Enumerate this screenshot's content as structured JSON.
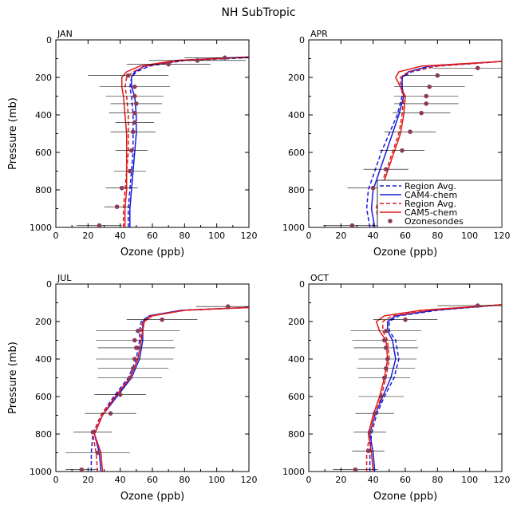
{
  "figure_title": "NH SubTropic",
  "colors": {
    "cam4": "#1a1adb",
    "cam5": "#e01818",
    "sonde": "#8b3a58",
    "axis": "#000000",
    "whisker": "#000000"
  },
  "legend": {
    "entries": [
      {
        "label": "Region Avg.",
        "style": "dashed",
        "color": "#1a1adb"
      },
      {
        "label": "CAM4-chem",
        "style": "solid",
        "color": "#1a1adb"
      },
      {
        "label": "Region Avg.",
        "style": "dashed",
        "color": "#e01818"
      },
      {
        "label": "CAM5-chem",
        "style": "solid",
        "color": "#e01818"
      },
      {
        "label": "Ozonesondes",
        "style": "dot",
        "color": "#8b3a58"
      }
    ]
  },
  "chart_data": [
    {
      "type": "line",
      "title": "JAN",
      "xlabel": "Ozone (ppb)",
      "ylabel": "Pressure (mb)",
      "xlim": [
        0,
        120
      ],
      "ylim": [
        1000,
        0
      ],
      "xticks": [
        0,
        20,
        40,
        60,
        80,
        100,
        120
      ],
      "yticks": [
        0,
        200,
        400,
        600,
        800,
        1000
      ],
      "series": [
        {
          "name": "CAM4-chem Region Avg.",
          "color": "#1a1adb",
          "style": "dashed",
          "x": [
            45,
            45,
            46,
            47,
            48,
            48,
            48,
            47,
            46,
            47,
            50,
            58,
            80,
            120
          ],
          "y": [
            1000,
            900,
            800,
            700,
            600,
            500,
            400,
            300,
            250,
            200,
            170,
            140,
            110,
            95
          ]
        },
        {
          "name": "CAM4-chem",
          "color": "#1a1adb",
          "style": "solid",
          "x": [
            46,
            46,
            47,
            48,
            49,
            50,
            50,
            49,
            47,
            47,
            49,
            55,
            75,
            120
          ],
          "y": [
            1000,
            900,
            800,
            700,
            600,
            500,
            400,
            300,
            250,
            200,
            170,
            140,
            110,
            90
          ]
        },
        {
          "name": "CAM5-chem Region Avg.",
          "color": "#e01818",
          "style": "dashed",
          "x": [
            42,
            42,
            43,
            44,
            45,
            45,
            45,
            44,
            43,
            44,
            48,
            56,
            78,
            120
          ],
          "y": [
            1000,
            900,
            800,
            700,
            600,
            500,
            400,
            300,
            250,
            200,
            170,
            140,
            110,
            92
          ]
        },
        {
          "name": "CAM5-chem",
          "color": "#e01818",
          "style": "solid",
          "x": [
            43,
            43,
            44,
            44,
            44,
            44,
            43,
            42,
            41,
            41,
            44,
            52,
            75,
            120
          ],
          "y": [
            1000,
            900,
            800,
            700,
            600,
            500,
            400,
            300,
            250,
            200,
            170,
            140,
            110,
            92
          ]
        },
        {
          "name": "Ozonesondes",
          "type": "scatter",
          "color": "#8b3a58",
          "x": [
            27,
            38,
            41,
            46,
            47,
            48,
            49,
            49,
            50,
            49,
            49,
            45,
            70,
            88,
            105
          ],
          "y": [
            990,
            890,
            790,
            700,
            590,
            490,
            440,
            390,
            340,
            300,
            250,
            190,
            130,
            110,
            95
          ],
          "xerr": [
            14,
            8,
            10,
            10,
            10,
            14,
            12,
            16,
            16,
            18,
            22,
            25,
            26,
            30,
            25
          ]
        }
      ]
    },
    {
      "type": "line",
      "title": "APR",
      "xlabel": "Ozone (ppb)",
      "ylabel": "",
      "xlim": [
        0,
        120
      ],
      "ylim": [
        1000,
        0
      ],
      "xticks": [
        0,
        20,
        40,
        60,
        80,
        100,
        120
      ],
      "yticks": [
        0,
        200,
        400,
        600,
        800,
        1000
      ],
      "series": [
        {
          "name": "CAM4-chem Region Avg.",
          "color": "#1a1adb",
          "style": "dashed",
          "x": [
            38,
            36,
            37,
            41,
            45,
            50,
            55,
            58,
            58,
            58,
            64,
            80,
            120
          ],
          "y": [
            1000,
            900,
            800,
            700,
            600,
            500,
            400,
            300,
            250,
            200,
            170,
            140,
            115
          ]
        },
        {
          "name": "CAM4-chem",
          "color": "#1a1adb",
          "style": "solid",
          "x": [
            41,
            39,
            40,
            44,
            48,
            52,
            56,
            59,
            58,
            58,
            62,
            75,
            120
          ],
          "y": [
            1000,
            900,
            800,
            700,
            600,
            500,
            400,
            300,
            250,
            200,
            170,
            140,
            115
          ]
        },
        {
          "name": "CAM5-chem Region Avg.",
          "color": "#e01818",
          "style": "dashed",
          "x": [
            44,
            42,
            44,
            48,
            52,
            56,
            58,
            59,
            57,
            57,
            62,
            80,
            120
          ],
          "y": [
            1000,
            900,
            800,
            700,
            600,
            500,
            400,
            300,
            250,
            200,
            170,
            140,
            115
          ]
        },
        {
          "name": "CAM5-chem",
          "color": "#e01818",
          "style": "solid",
          "x": [
            47,
            44,
            45,
            49,
            53,
            57,
            59,
            60,
            57,
            54,
            56,
            70,
            120
          ],
          "y": [
            1000,
            900,
            800,
            700,
            600,
            500,
            400,
            300,
            250,
            200,
            170,
            140,
            115
          ]
        },
        {
          "name": "Ozonesondes",
          "type": "scatter",
          "color": "#8b3a58",
          "x": [
            27,
            40,
            48,
            58,
            63,
            70,
            73,
            73,
            75,
            80,
            105
          ],
          "y": [
            990,
            790,
            690,
            590,
            490,
            390,
            340,
            300,
            250,
            190,
            150
          ],
          "xerr": [
            18,
            16,
            14,
            14,
            16,
            18,
            20,
            20,
            22,
            22,
            28
          ]
        }
      ]
    },
    {
      "type": "line",
      "title": "JUL",
      "xlabel": "Ozone (ppb)",
      "ylabel": "Pressure (mb)",
      "xlim": [
        0,
        120
      ],
      "ylim": [
        1000,
        0
      ],
      "xticks": [
        0,
        20,
        40,
        60,
        80,
        100,
        120
      ],
      "yticks": [
        0,
        200,
        400,
        600,
        800,
        1000
      ],
      "series": [
        {
          "name": "CAM4-chem Region Avg.",
          "color": "#1a1adb",
          "style": "dashed",
          "x": [
            22,
            22,
            23,
            28,
            36,
            45,
            50,
            52,
            52,
            53,
            58,
            80,
            120
          ],
          "y": [
            1000,
            900,
            800,
            700,
            600,
            500,
            400,
            300,
            250,
            200,
            170,
            140,
            125
          ]
        },
        {
          "name": "CAM4-chem",
          "color": "#1a1adb",
          "style": "solid",
          "x": [
            28,
            27,
            24,
            29,
            38,
            47,
            52,
            54,
            54,
            54,
            58,
            78,
            120
          ],
          "y": [
            1000,
            900,
            800,
            700,
            600,
            500,
            400,
            300,
            250,
            200,
            170,
            140,
            125
          ]
        },
        {
          "name": "CAM5-chem Region Avg.",
          "color": "#e01818",
          "style": "dashed",
          "x": [
            26,
            25,
            23,
            28,
            37,
            46,
            51,
            53,
            53,
            54,
            59,
            80,
            120
          ],
          "y": [
            1000,
            900,
            800,
            700,
            600,
            500,
            400,
            300,
            250,
            200,
            170,
            140,
            125
          ]
        },
        {
          "name": "CAM5-chem",
          "color": "#e01818",
          "style": "solid",
          "x": [
            29,
            28,
            24,
            29,
            37,
            46,
            51,
            53,
            54,
            55,
            60,
            80,
            120
          ],
          "y": [
            1000,
            900,
            800,
            700,
            600,
            500,
            400,
            300,
            250,
            200,
            170,
            140,
            125
          ]
        },
        {
          "name": "Ozonesondes",
          "type": "scatter",
          "color": "#8b3a58",
          "x": [
            16,
            26,
            23,
            34,
            40,
            46,
            48,
            49,
            50,
            49,
            51,
            66,
            107
          ],
          "y": [
            990,
            900,
            790,
            690,
            590,
            500,
            450,
            400,
            340,
            300,
            250,
            190,
            120
          ],
          "xerr": [
            10,
            20,
            12,
            16,
            16,
            20,
            22,
            24,
            24,
            24,
            26,
            22,
            20
          ]
        }
      ]
    },
    {
      "type": "line",
      "title": "OCT",
      "xlabel": "Ozone (ppb)",
      "ylabel": "",
      "xlim": [
        0,
        120
      ],
      "ylim": [
        1000,
        0
      ],
      "xticks": [
        0,
        20,
        40,
        60,
        80,
        100,
        120
      ],
      "yticks": [
        0,
        200,
        400,
        600,
        800,
        1000
      ],
      "series": [
        {
          "name": "CAM4-chem Region Avg.",
          "color": "#1a1adb",
          "style": "dashed",
          "x": [
            38,
            38,
            39,
            42,
            47,
            53,
            56,
            54,
            50,
            50,
            56,
            80,
            120
          ],
          "y": [
            1000,
            900,
            800,
            700,
            600,
            500,
            400,
            300,
            250,
            200,
            170,
            140,
            110
          ]
        },
        {
          "name": "CAM4-chem",
          "color": "#1a1adb",
          "style": "solid",
          "x": [
            41,
            40,
            38,
            41,
            46,
            51,
            54,
            52,
            49,
            49,
            54,
            78,
            120
          ],
          "y": [
            1000,
            900,
            800,
            700,
            600,
            500,
            400,
            300,
            250,
            200,
            170,
            140,
            110
          ]
        },
        {
          "name": "CAM5-chem Region Avg.",
          "color": "#e01818",
          "style": "dashed",
          "x": [
            36,
            36,
            38,
            41,
            45,
            48,
            50,
            49,
            46,
            46,
            52,
            75,
            120
          ],
          "y": [
            1000,
            900,
            800,
            700,
            600,
            500,
            400,
            300,
            250,
            200,
            170,
            140,
            110
          ]
        },
        {
          "name": "CAM5-chem",
          "color": "#e01818",
          "style": "solid",
          "x": [
            40,
            39,
            37,
            40,
            44,
            47,
            49,
            48,
            44,
            42,
            47,
            70,
            120
          ],
          "y": [
            1000,
            900,
            800,
            700,
            600,
            500,
            400,
            300,
            250,
            200,
            170,
            140,
            110
          ]
        },
        {
          "name": "Ozonesondes",
          "type": "scatter",
          "color": "#8b3a58",
          "x": [
            29,
            37,
            38,
            41,
            45,
            47,
            48,
            49,
            48,
            47,
            48,
            60,
            105
          ],
          "y": [
            990,
            890,
            790,
            690,
            600,
            500,
            450,
            400,
            340,
            300,
            250,
            190,
            115
          ],
          "xerr": [
            14,
            10,
            10,
            12,
            14,
            16,
            18,
            18,
            20,
            20,
            22,
            20,
            25
          ]
        }
      ]
    }
  ]
}
